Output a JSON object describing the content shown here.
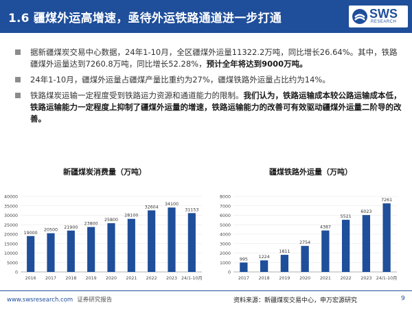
{
  "header": {
    "title": "1.6 疆煤外运高增速，亟待外运铁路通道进一步打通",
    "logo_text": "SWS",
    "logo_sub": "RESEARCH"
  },
  "bullets": [
    {
      "text_normal": "据新疆煤炭交易中心数据，24年1-10月，全区疆煤外运量11322.2万吨，同比增长26.64%。其中，铁路疆煤外运量达到7260.8万吨，同比增长52.28%，",
      "text_bold": "预计全年将达到9000万吨。"
    },
    {
      "text_normal": "24年1-10月，疆煤外运量占疆煤产量比重约为27%，疆煤铁路外运量占比约为14%。",
      "text_bold": ""
    },
    {
      "text_normal": "铁路煤炭运输一定程度受到铁路运力资源和通道能力的限制。",
      "text_bold": "我们认为，铁路运输成本较公路运输成本低，铁路运输能力一定程度上抑制了疆煤外运量的增速，铁路运输能力的改善可有效驱动疆煤外运量二阶导的改善。"
    }
  ],
  "chart_data": [
    {
      "type": "bar",
      "title": "新疆煤炭消费量（万吨）",
      "categories": [
        "2016",
        "2017",
        "2018",
        "2019",
        "2020",
        "2021",
        "2022",
        "2023",
        "24/1-10月"
      ],
      "values": [
        19000,
        20500,
        21900,
        23800,
        25800,
        28100,
        32604,
        34100,
        31153
      ],
      "value_labels": [
        "19000",
        "20500",
        "21900",
        "23800",
        "25800",
        "28100",
        "32604",
        "34100",
        "31153"
      ],
      "ylim": [
        0,
        40000
      ],
      "yticks": [
        0,
        5000,
        10000,
        15000,
        20000,
        25000,
        30000,
        35000,
        40000
      ],
      "ytick_labels": [
        "0",
        "5000",
        "10000",
        "15000",
        "20000",
        "25000",
        "30000",
        "35000",
        "40000"
      ],
      "grid": true,
      "bar_color": "#1f4e9a",
      "highlight_color": "#1f4e9a"
    },
    {
      "type": "bar",
      "title": "疆煤铁路外运量（万吨）",
      "categories": [
        "2017",
        "2018",
        "2019",
        "2020",
        "2021",
        "2022",
        "2023",
        "24/1-10月"
      ],
      "values": [
        995,
        1224,
        1811,
        2754,
        4387,
        5521,
        6023,
        7261
      ],
      "value_labels": [
        "995",
        "1224",
        "1811",
        "2754",
        "4387",
        "5521",
        "6023",
        "7261"
      ],
      "ylim": [
        0,
        8000
      ],
      "yticks": [
        0,
        1000,
        2000,
        3000,
        4000,
        5000,
        6000,
        7000,
        8000
      ],
      "ytick_labels": [
        "0",
        "1000",
        "2000",
        "3000",
        "4000",
        "5000",
        "6000",
        "7000",
        "8000"
      ],
      "grid": true,
      "bar_color": "#1f4e9a",
      "highlight_color": "#1f4e9a"
    }
  ],
  "footer": {
    "site": "www.swsresearch.com",
    "report": "证券研究报告",
    "source": "资料来源：新疆煤炭交易中心，申万宏源研究",
    "page": "9"
  }
}
